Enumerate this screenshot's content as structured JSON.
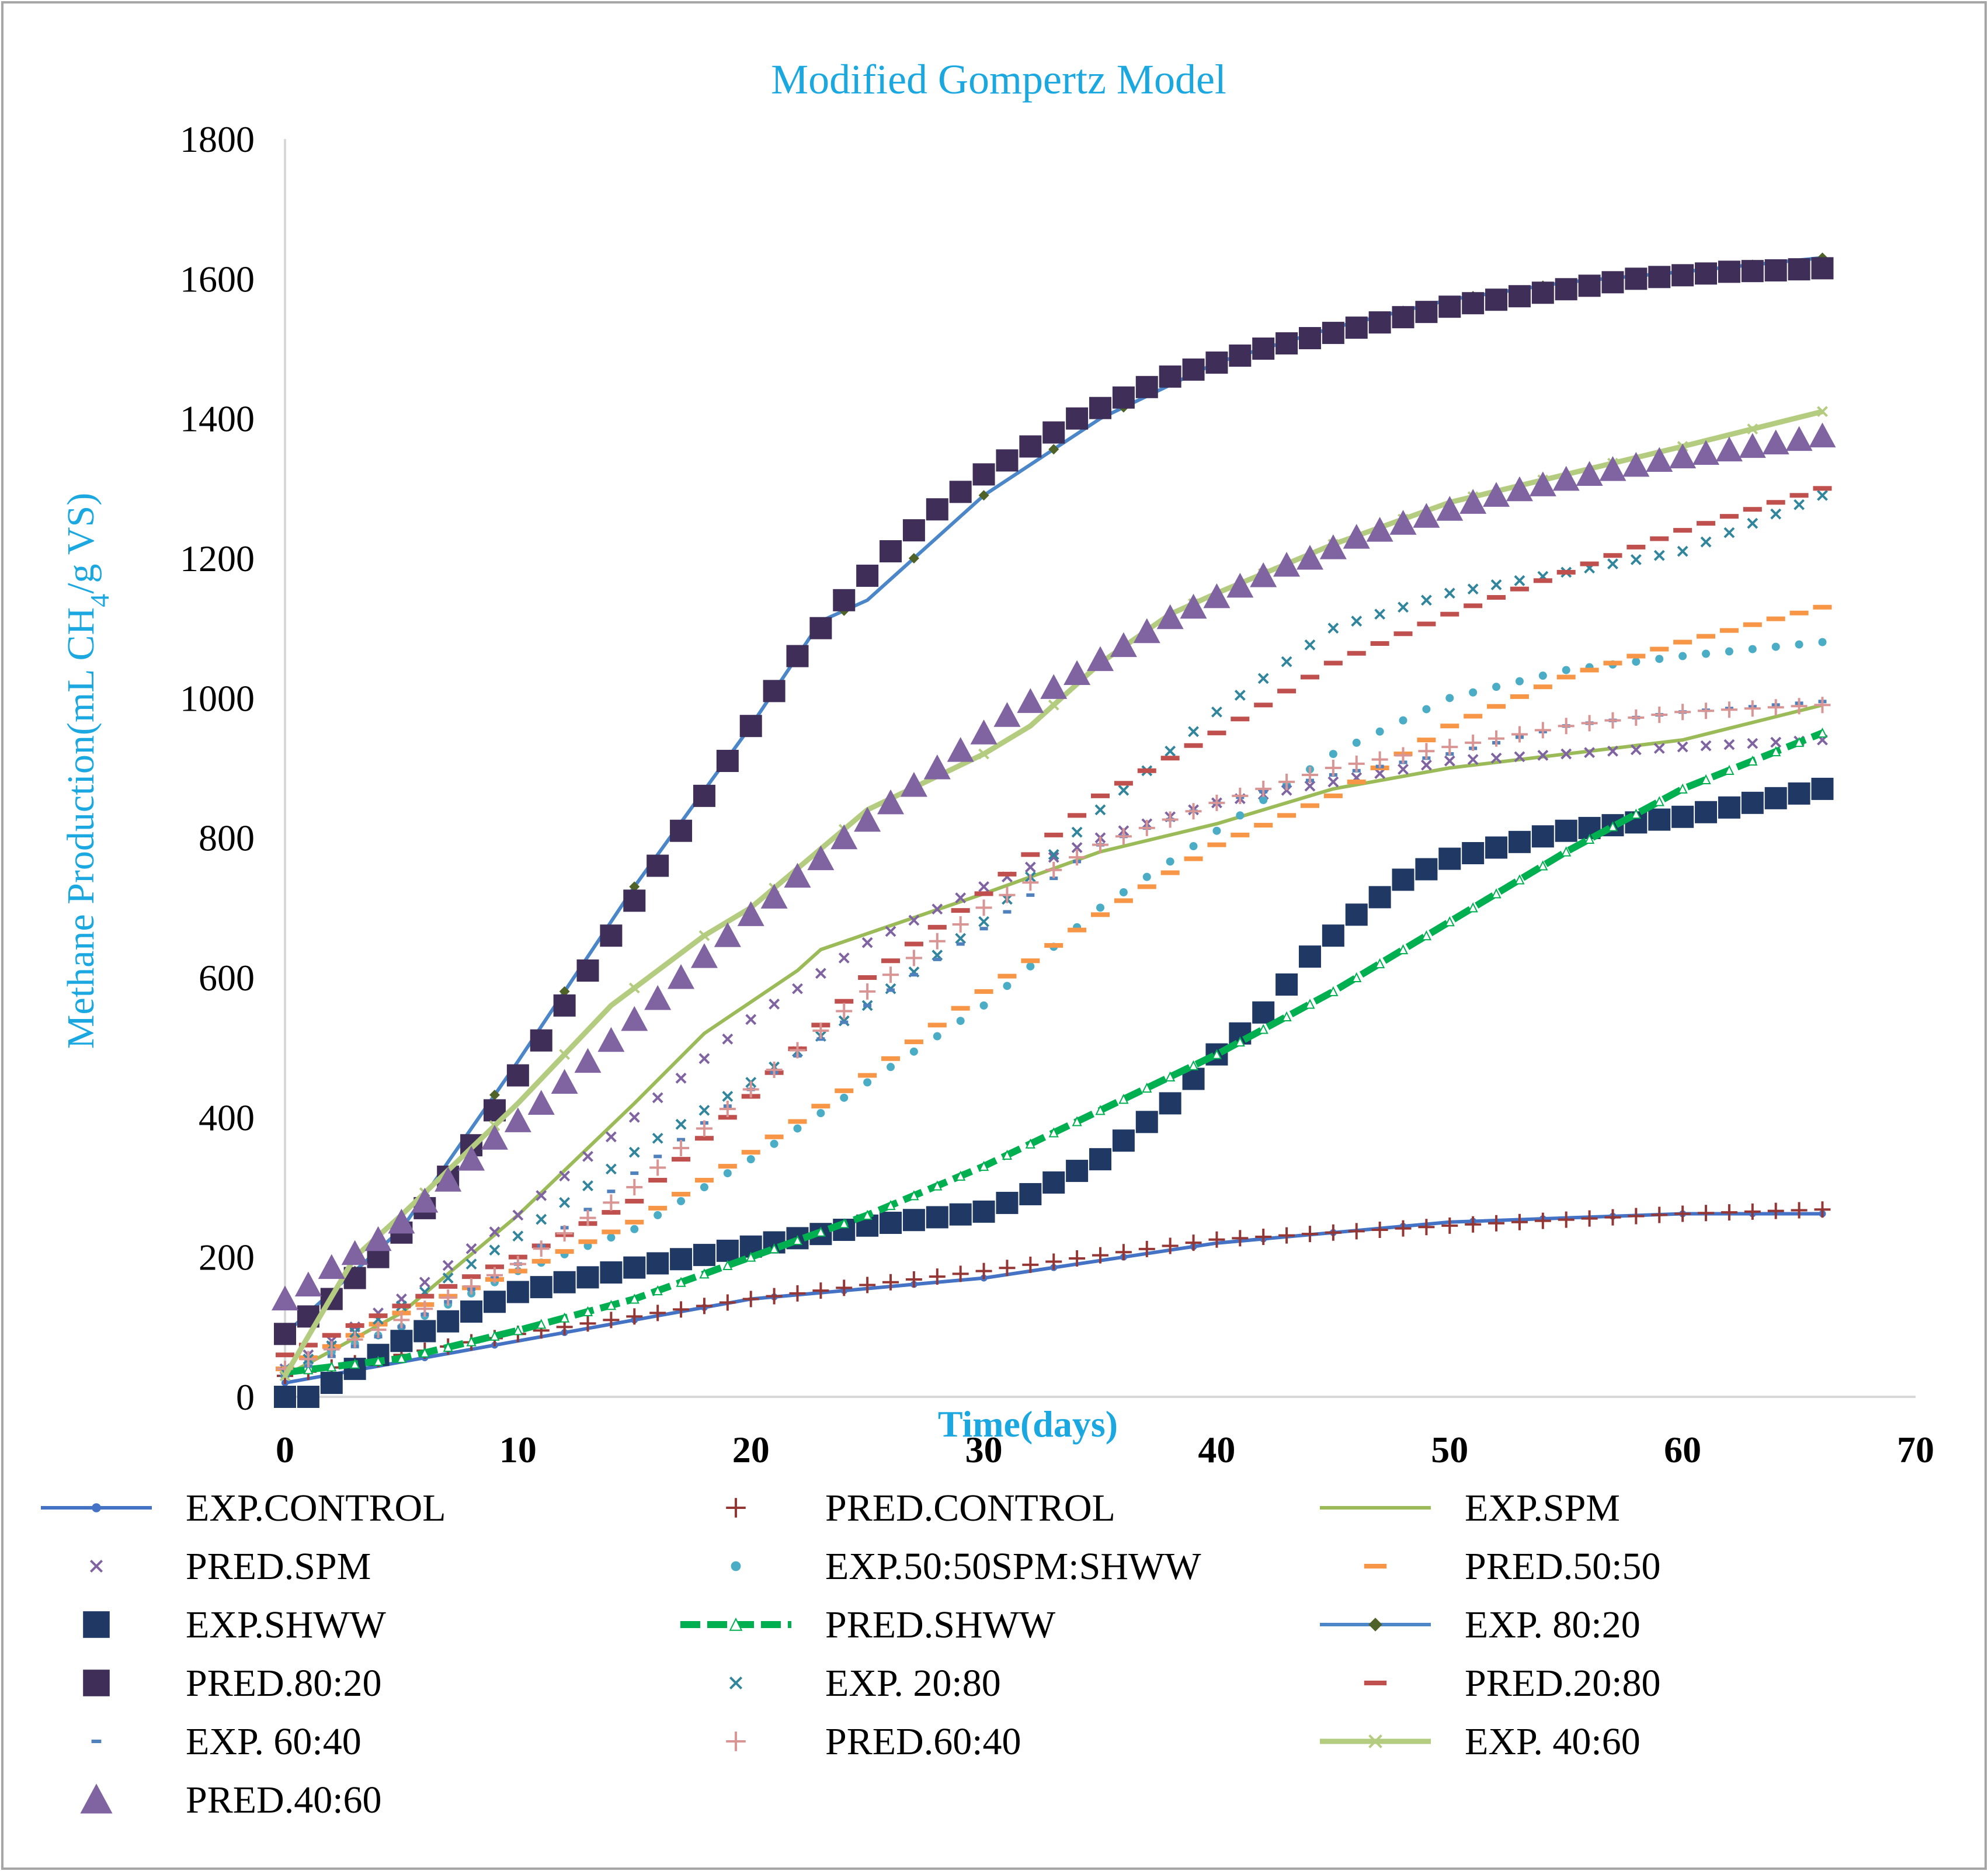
{
  "chart_data": {
    "type": "line",
    "title": "Modified Gompertz Model",
    "xlabel": "Time(days)",
    "ylabel": "Methane Production(mL CH4/g VS)",
    "ylabel_parts": {
      "before": "Methane Production(mL CH",
      "sub": "4",
      "after": "/g VS)"
    },
    "xlim": [
      0,
      70
    ],
    "ylim": [
      0,
      1800
    ],
    "xticks": [
      0,
      10,
      20,
      30,
      40,
      50,
      60,
      70
    ],
    "yticks": [
      0,
      200,
      400,
      600,
      800,
      1000,
      1200,
      1400,
      1600,
      1800
    ],
    "xtick_labels": [
      "0",
      "10",
      "20",
      "30",
      "40",
      "50",
      "60",
      "70"
    ],
    "ytick_labels": [
      "0",
      "200",
      "400",
      "600",
      "800",
      "1000",
      "1200",
      "1400",
      "1600",
      "1800"
    ],
    "grid": false,
    "legend_position": "bottom",
    "colors": {
      "title": "#1BA8E0",
      "ylabel": "#1BA8E0",
      "xlabel": "#1BA8E0",
      "axis": "#D9D9D9",
      "frame": "#A6A6A6"
    },
    "series": [
      {
        "name": "EXP.CONTROL",
        "color": "#4472C4",
        "style": "line-dot",
        "marker": "circle",
        "x": [
          0,
          10,
          20,
          30,
          40,
          50,
          60,
          66
        ],
        "y": [
          20,
          80,
          140,
          170,
          220,
          250,
          262,
          262
        ]
      },
      {
        "name": "PRED.CONTROL",
        "color": "#943634",
        "style": "marker",
        "marker": "plus",
        "x": [
          0,
          10,
          20,
          30,
          40,
          50,
          60,
          66
        ],
        "y": [
          30,
          90,
          140,
          180,
          225,
          245,
          262,
          268
        ]
      },
      {
        "name": "EXP.SPM",
        "color": "#9BBB59",
        "style": "line",
        "marker": "none",
        "x": [
          0,
          5,
          10,
          15,
          18,
          22,
          23,
          30,
          35,
          40,
          45,
          50,
          55,
          60,
          66
        ],
        "y": [
          30,
          120,
          260,
          420,
          520,
          610,
          640,
          720,
          780,
          820,
          870,
          900,
          920,
          940,
          990
        ]
      },
      {
        "name": "PRED.SPM",
        "color": "#8064A2",
        "style": "marker",
        "marker": "x",
        "x": [
          0,
          5,
          10,
          15,
          20,
          25,
          30,
          35,
          40,
          45,
          50,
          55,
          60,
          66
        ],
        "y": [
          40,
          140,
          260,
          400,
          540,
          650,
          730,
          800,
          850,
          880,
          910,
          920,
          930,
          940
        ]
      },
      {
        "name": "EXP.50:50SPM:SHWW",
        "color": "#4BACC6",
        "style": "marker",
        "marker": "dot",
        "x": [
          0,
          5,
          10,
          15,
          20,
          25,
          30,
          35,
          40,
          45,
          50,
          55,
          60,
          66
        ],
        "y": [
          40,
          100,
          180,
          240,
          340,
          450,
          560,
          700,
          810,
          920,
          1000,
          1040,
          1060,
          1080
        ]
      },
      {
        "name": "PRED.50:50",
        "color": "#F79646",
        "style": "marker",
        "marker": "dash",
        "x": [
          0,
          5,
          10,
          15,
          20,
          25,
          30,
          35,
          40,
          45,
          50,
          55,
          60,
          66
        ],
        "y": [
          40,
          120,
          180,
          250,
          350,
          460,
          580,
          690,
          790,
          860,
          960,
          1030,
          1080,
          1130
        ]
      },
      {
        "name": "EXP.SHWW",
        "color": "#1F3864",
        "style": "marker",
        "marker": "square",
        "x": [
          0,
          1,
          5,
          10,
          15,
          20,
          25,
          30,
          32,
          35,
          38,
          40,
          42,
          44,
          46,
          48,
          50,
          55,
          60,
          66
        ],
        "y": [
          0,
          0,
          80,
          150,
          185,
          215,
          245,
          265,
          290,
          340,
          420,
          490,
          550,
          630,
          690,
          740,
          770,
          810,
          830,
          870
        ]
      },
      {
        "name": "PRED.SHWW",
        "color": "#00B050",
        "style": "dashed-line",
        "marker": "triangle-small",
        "x": [
          0,
          5,
          10,
          15,
          20,
          25,
          30,
          35,
          40,
          45,
          50,
          55,
          60,
          66
        ],
        "y": [
          35,
          55,
          95,
          140,
          200,
          260,
          330,
          410,
          490,
          580,
          680,
          780,
          870,
          950
        ]
      },
      {
        "name": "EXP. 80:20",
        "color": "#4A86C8",
        "style": "line-diamond",
        "marker": "diamond",
        "x": [
          0,
          5,
          10,
          15,
          20,
          23,
          25,
          30,
          35,
          40,
          45,
          50,
          55,
          60,
          66
        ],
        "y": [
          90,
          240,
          480,
          730,
          960,
          1110,
          1140,
          1290,
          1400,
          1480,
          1530,
          1570,
          1595,
          1610,
          1630
        ]
      },
      {
        "name": "PRED.80:20",
        "color": "#3F2E58",
        "style": "marker",
        "marker": "square",
        "x": [
          0,
          2,
          4,
          6,
          8,
          10,
          12,
          14,
          16,
          18,
          20,
          22,
          24,
          26,
          28,
          30,
          32,
          34,
          36,
          38,
          40,
          42,
          44,
          46,
          48,
          50,
          52,
          54,
          56,
          58,
          60,
          62,
          64,
          66
        ],
        "y": [
          90,
          140,
          200,
          270,
          360,
          460,
          560,
          660,
          760,
          860,
          960,
          1060,
          1140,
          1210,
          1270,
          1320,
          1360,
          1400,
          1430,
          1460,
          1480,
          1500,
          1515,
          1530,
          1545,
          1560,
          1570,
          1580,
          1590,
          1600,
          1605,
          1610,
          1612,
          1615
        ]
      },
      {
        "name": "EXP. 20:80",
        "color": "#31859C",
        "style": "marker",
        "marker": "x",
        "x": [
          0,
          5,
          10,
          15,
          20,
          25,
          30,
          35,
          40,
          45,
          50,
          55,
          60,
          66
        ],
        "y": [
          35,
          130,
          230,
          350,
          450,
          560,
          680,
          840,
          980,
          1100,
          1150,
          1180,
          1210,
          1290
        ]
      },
      {
        "name": "PRED.20:80",
        "color": "#C0504D",
        "style": "marker",
        "marker": "dash",
        "x": [
          0,
          5,
          10,
          15,
          20,
          25,
          30,
          35,
          40,
          45,
          50,
          55,
          60,
          66
        ],
        "y": [
          60,
          130,
          200,
          280,
          430,
          600,
          720,
          860,
          950,
          1050,
          1120,
          1180,
          1240,
          1300
        ]
      },
      {
        "name": "EXP. 60:40",
        "color": "#4F81BD",
        "style": "marker",
        "marker": "dash-small",
        "x": [
          0,
          5,
          10,
          15,
          20,
          25,
          30,
          35,
          40,
          45,
          50,
          55,
          60,
          66
        ],
        "y": [
          30,
          100,
          190,
          320,
          440,
          560,
          670,
          790,
          850,
          890,
          920,
          960,
          980,
          995
        ]
      },
      {
        "name": "PRED.60:40",
        "color": "#D99594",
        "style": "marker",
        "marker": "plus",
        "x": [
          0,
          5,
          10,
          15,
          20,
          25,
          30,
          35,
          40,
          45,
          50,
          55,
          60,
          66
        ],
        "y": [
          40,
          110,
          190,
          300,
          440,
          580,
          700,
          790,
          850,
          900,
          930,
          960,
          980,
          990
        ]
      },
      {
        "name": "EXP. 40:60",
        "color": "#B4CC7F",
        "style": "line-x",
        "marker": "x",
        "x": [
          0,
          3,
          5,
          10,
          14,
          18,
          20,
          25,
          30,
          32,
          35,
          38,
          40,
          45,
          50,
          55,
          60,
          66
        ],
        "y": [
          30,
          200,
          260,
          420,
          560,
          660,
          700,
          840,
          920,
          960,
          1050,
          1120,
          1150,
          1220,
          1280,
          1320,
          1360,
          1410
        ]
      },
      {
        "name": "PRED.40:60",
        "color": "#8064A2",
        "style": "marker",
        "marker": "triangle",
        "x": [
          0,
          1,
          2,
          3,
          4,
          5,
          6,
          7,
          8,
          9,
          10,
          11,
          12,
          13,
          14,
          15,
          16,
          17,
          18,
          19,
          20,
          21,
          22,
          23,
          24,
          25,
          26,
          27,
          28,
          29,
          30,
          31,
          32,
          33,
          34,
          35,
          36,
          37,
          38,
          39,
          40,
          41,
          42,
          43,
          44,
          45,
          46,
          47,
          48,
          49,
          50,
          51,
          52,
          53,
          54,
          55,
          56,
          57,
          58,
          59,
          60,
          61,
          62,
          63,
          64,
          65,
          66
        ],
        "y": [
          140,
          160,
          185,
          205,
          225,
          250,
          280,
          310,
          340,
          370,
          395,
          420,
          450,
          480,
          510,
          540,
          570,
          600,
          630,
          660,
          690,
          715,
          745,
          770,
          800,
          825,
          850,
          875,
          900,
          925,
          950,
          975,
          995,
          1015,
          1035,
          1055,
          1075,
          1095,
          1115,
          1130,
          1145,
          1160,
          1175,
          1190,
          1200,
          1215,
          1230,
          1240,
          1250,
          1260,
          1270,
          1280,
          1290,
          1298,
          1305,
          1313,
          1320,
          1327,
          1333,
          1340,
          1345,
          1350,
          1355,
          1360,
          1365,
          1370,
          1375
        ]
      }
    ]
  }
}
